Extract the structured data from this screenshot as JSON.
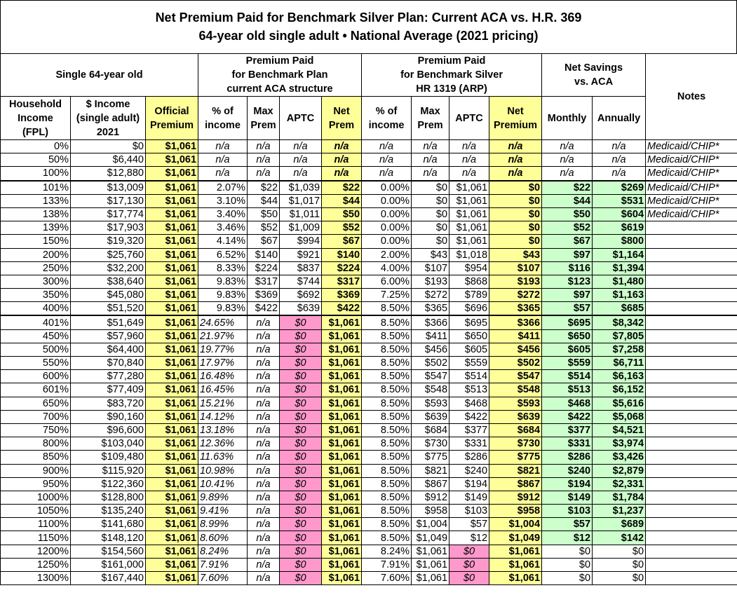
{
  "title": [
    "Net Premium Paid for Benchmark Silver Plan: Current ACA vs. H.R. 369",
    "64-year old single adult • National Average (2021 pricing)"
  ],
  "groups": [
    "Single 64-year old",
    "Premium Paid\nfor Benchmark Plan\ncurrent ACA structure",
    "Premium Paid\nfor Benchmark Silver\nHR 1319 (ARP)",
    "Net Savings\nvs. ACA",
    "Notes"
  ],
  "columns": [
    "Household\nIncome\n(FPL)",
    "$ Income\n(single adult)\n2021",
    "Official\nPremium",
    "% of\nincome",
    "Max\nPrem",
    "APTC",
    "Net\nPrem",
    "% of\nincome",
    "Max\nPrem",
    "APTC",
    "Net\nPremium",
    "Monthly",
    "Annually"
  ],
  "rows": [
    [
      "0%",
      "$0",
      "$1,061",
      "n/a",
      "n/a",
      "n/a",
      "n/a",
      "n/a",
      "n/a",
      "n/a",
      "n/a",
      "n/a",
      "n/a",
      "Medicaid/CHIP*"
    ],
    [
      "50%",
      "$6,440",
      "$1,061",
      "n/a",
      "n/a",
      "n/a",
      "n/a",
      "n/a",
      "n/a",
      "n/a",
      "n/a",
      "n/a",
      "n/a",
      "Medicaid/CHIP*"
    ],
    [
      "100%",
      "$12,880",
      "$1,061",
      "n/a",
      "n/a",
      "n/a",
      "n/a",
      "n/a",
      "n/a",
      "n/a",
      "n/a",
      "n/a",
      "n/a",
      "Medicaid/CHIP*"
    ],
    [
      "101%",
      "$13,009",
      "$1,061",
      "2.07%",
      "$22",
      "$1,039",
      "$22",
      "0.00%",
      "$0",
      "$1,061",
      "$0",
      "$22",
      "$269",
      "Medicaid/CHIP*"
    ],
    [
      "133%",
      "$17,130",
      "$1,061",
      "3.10%",
      "$44",
      "$1,017",
      "$44",
      "0.00%",
      "$0",
      "$1,061",
      "$0",
      "$44",
      "$531",
      "Medicaid/CHIP*"
    ],
    [
      "138%",
      "$17,774",
      "$1,061",
      "3.40%",
      "$50",
      "$1,011",
      "$50",
      "0.00%",
      "$0",
      "$1,061",
      "$0",
      "$50",
      "$604",
      "Medicaid/CHIP*"
    ],
    [
      "139%",
      "$17,903",
      "$1,061",
      "3.46%",
      "$52",
      "$1,009",
      "$52",
      "0.00%",
      "$0",
      "$1,061",
      "$0",
      "$52",
      "$619",
      null
    ],
    [
      "150%",
      "$19,320",
      "$1,061",
      "4.14%",
      "$67",
      "$994",
      "$67",
      "0.00%",
      "$0",
      "$1,061",
      "$0",
      "$67",
      "$800",
      null
    ],
    [
      "200%",
      "$25,760",
      "$1,061",
      "6.52%",
      "$140",
      "$921",
      "$140",
      "2.00%",
      "$43",
      "$1,018",
      "$43",
      "$97",
      "$1,164",
      null
    ],
    [
      "250%",
      "$32,200",
      "$1,061",
      "8.33%",
      "$224",
      "$837",
      "$224",
      "4.00%",
      "$107",
      "$954",
      "$107",
      "$116",
      "$1,394",
      null
    ],
    [
      "300%",
      "$38,640",
      "$1,061",
      "9.83%",
      "$317",
      "$744",
      "$317",
      "6.00%",
      "$193",
      "$868",
      "$193",
      "$123",
      "$1,480",
      null
    ],
    [
      "350%",
      "$45,080",
      "$1,061",
      "9.83%",
      "$369",
      "$692",
      "$369",
      "7.25%",
      "$272",
      "$789",
      "$272",
      "$97",
      "$1,163",
      null
    ],
    [
      "400%",
      "$51,520",
      "$1,061",
      "9.83%",
      "$422",
      "$639",
      "$422",
      "8.50%",
      "$365",
      "$696",
      "$365",
      "$57",
      "$685",
      null
    ],
    [
      "401%",
      "$51,649",
      "$1,061",
      "24.65%",
      "n/a",
      "$0",
      "$1,061",
      "8.50%",
      "$366",
      "$695",
      "$366",
      "$695",
      "$8,342",
      null
    ],
    [
      "450%",
      "$57,960",
      "$1,061",
      "21.97%",
      "n/a",
      "$0",
      "$1,061",
      "8.50%",
      "$411",
      "$650",
      "$411",
      "$650",
      "$7,805",
      null
    ],
    [
      "500%",
      "$64,400",
      "$1,061",
      "19.77%",
      "n/a",
      "$0",
      "$1,061",
      "8.50%",
      "$456",
      "$605",
      "$456",
      "$605",
      "$7,258",
      null
    ],
    [
      "550%",
      "$70,840",
      "$1,061",
      "17.97%",
      "n/a",
      "$0",
      "$1,061",
      "8.50%",
      "$502",
      "$559",
      "$502",
      "$559",
      "$6,711",
      null
    ],
    [
      "600%",
      "$77,280",
      "$1,061",
      "16.48%",
      "n/a",
      "$0",
      "$1,061",
      "8.50%",
      "$547",
      "$514",
      "$547",
      "$514",
      "$6,163",
      null
    ],
    [
      "601%",
      "$77,409",
      "$1,061",
      "16.45%",
      "n/a",
      "$0",
      "$1,061",
      "8.50%",
      "$548",
      "$513",
      "$548",
      "$513",
      "$6,152",
      null
    ],
    [
      "650%",
      "$83,720",
      "$1,061",
      "15.21%",
      "n/a",
      "$0",
      "$1,061",
      "8.50%",
      "$593",
      "$468",
      "$593",
      "$468",
      "$5,616",
      null
    ],
    [
      "700%",
      "$90,160",
      "$1,061",
      "14.12%",
      "n/a",
      "$0",
      "$1,061",
      "8.50%",
      "$639",
      "$422",
      "$639",
      "$422",
      "$5,068",
      null
    ],
    [
      "750%",
      "$96,600",
      "$1,061",
      "13.18%",
      "n/a",
      "$0",
      "$1,061",
      "8.50%",
      "$684",
      "$377",
      "$684",
      "$377",
      "$4,521",
      null
    ],
    [
      "800%",
      "$103,040",
      "$1,061",
      "12.36%",
      "n/a",
      "$0",
      "$1,061",
      "8.50%",
      "$730",
      "$331",
      "$730",
      "$331",
      "$3,974",
      null
    ],
    [
      "850%",
      "$109,480",
      "$1,061",
      "11.63%",
      "n/a",
      "$0",
      "$1,061",
      "8.50%",
      "$775",
      "$286",
      "$775",
      "$286",
      "$3,426",
      null
    ],
    [
      "900%",
      "$115,920",
      "$1,061",
      "10.98%",
      "n/a",
      "$0",
      "$1,061",
      "8.50%",
      "$821",
      "$240",
      "$821",
      "$240",
      "$2,879",
      null
    ],
    [
      "950%",
      "$122,360",
      "$1,061",
      "10.41%",
      "n/a",
      "$0",
      "$1,061",
      "8.50%",
      "$867",
      "$194",
      "$867",
      "$194",
      "$2,331",
      null
    ],
    [
      "1000%",
      "$128,800",
      "$1,061",
      "9.89%",
      "n/a",
      "$0",
      "$1,061",
      "8.50%",
      "$912",
      "$149",
      "$912",
      "$149",
      "$1,784",
      null
    ],
    [
      "1050%",
      "$135,240",
      "$1,061",
      "9.41%",
      "n/a",
      "$0",
      "$1,061",
      "8.50%",
      "$958",
      "$103",
      "$958",
      "$103",
      "$1,237",
      null
    ],
    [
      "1100%",
      "$141,680",
      "$1,061",
      "8.99%",
      "n/a",
      "$0",
      "$1,061",
      "8.50%",
      "$1,004",
      "$57",
      "$1,004",
      "$57",
      "$689",
      null
    ],
    [
      "1150%",
      "$148,120",
      "$1,061",
      "8.60%",
      "n/a",
      "$0",
      "$1,061",
      "8.50%",
      "$1,049",
      "$12",
      "$1,049",
      "$12",
      "$142",
      null
    ],
    [
      "1200%",
      "$154,560",
      "$1,061",
      "8.24%",
      "n/a",
      "$0",
      "$1,061",
      "8.24%",
      "$1,061",
      "$0",
      "$1,061",
      "$0",
      "$0",
      null
    ],
    [
      "1250%",
      "$161,000",
      "$1,061",
      "7.91%",
      "n/a",
      "$0",
      "$1,061",
      "7.91%",
      "$1,061",
      "$0",
      "$1,061",
      "$0",
      "$0",
      null
    ],
    [
      "1300%",
      "$167,440",
      "$1,061",
      "7.60%",
      "n/a",
      "$0",
      "$1,061",
      "7.60%",
      "$1,061",
      "$0",
      "$1,061",
      "$0",
      "$0",
      null
    ]
  ]
}
